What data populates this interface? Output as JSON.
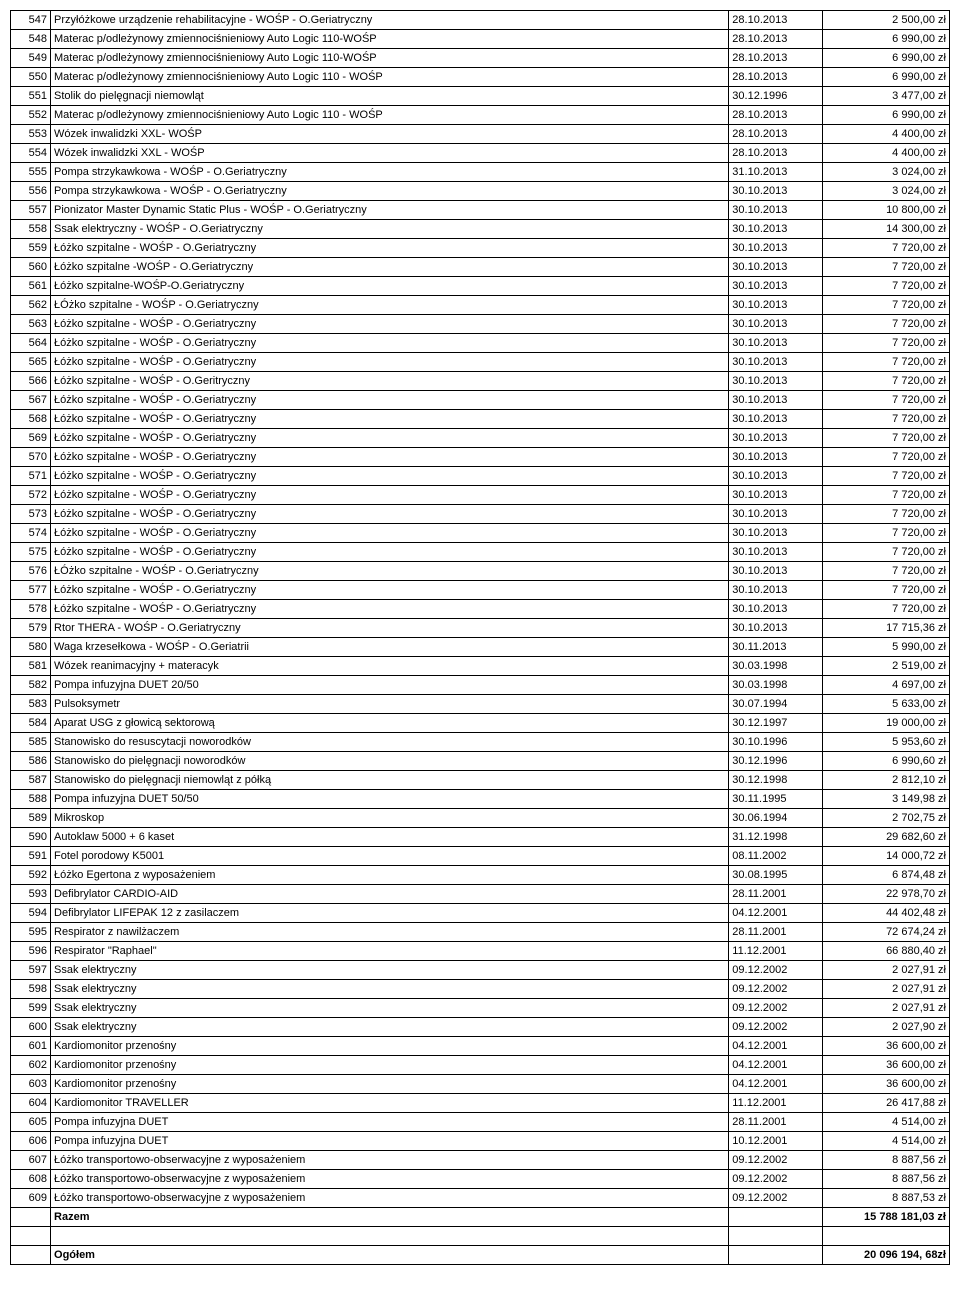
{
  "columns": {
    "widths": [
      30,
      620,
      80,
      110
    ],
    "align": [
      "right",
      "left",
      "left",
      "right"
    ]
  },
  "rows": [
    {
      "n": "547",
      "d": "Przyłóżkowe urządzenie rehabilitacyjne - WOŚP - O.Geriatryczny",
      "dt": "28.10.2013",
      "a": "2 500,00 zł"
    },
    {
      "n": "548",
      "d": "Materac p/odleżynowy zmiennociśnieniowy Auto Logic 110-WOŚP",
      "dt": "28.10.2013",
      "a": "6 990,00 zł"
    },
    {
      "n": "549",
      "d": "Materac p/odleżynowy zmiennociśnieniowy Auto Logic 110-WOŚP",
      "dt": "28.10.2013",
      "a": "6 990,00 zł"
    },
    {
      "n": "550",
      "d": "Materac p/odleżynowy zmiennociśnieniowy Auto Logic 110 - WOŚP",
      "dt": "28.10.2013",
      "a": "6 990,00 zł"
    },
    {
      "n": "551",
      "d": "Stolik do pielęgnacji niemowląt",
      "dt": "30.12.1996",
      "a": "3 477,00 zł"
    },
    {
      "n": "552",
      "d": "Materac p/odleżynowy zmiennociśnieniowy Auto Logic 110 - WOŚP",
      "dt": "28.10.2013",
      "a": "6 990,00 zł"
    },
    {
      "n": "553",
      "d": "Wózek inwalidzki XXL- WOŚP",
      "dt": "28.10.2013",
      "a": "4 400,00 zł"
    },
    {
      "n": "554",
      "d": "Wózek inwalidzki XXL - WOŚP",
      "dt": "28.10.2013",
      "a": "4 400,00 zł"
    },
    {
      "n": "555",
      "d": "Pompa strzykawkowa - WOŚP - O.Geriatryczny",
      "dt": "31.10.2013",
      "a": "3 024,00 zł"
    },
    {
      "n": "556",
      "d": "Pompa strzykawkowa - WOŚP - O.Geriatryczny",
      "dt": "30.10.2013",
      "a": "3 024,00 zł"
    },
    {
      "n": "557",
      "d": "Pionizator Master Dynamic Static Plus - WOŚP - O.Geriatryczny",
      "dt": "30.10.2013",
      "a": "10 800,00 zł"
    },
    {
      "n": "558",
      "d": "Ssak elektryczny - WOŚP - O.Geriatryczny",
      "dt": "30.10.2013",
      "a": "14 300,00 zł"
    },
    {
      "n": "559",
      "d": "Łóżko szpitalne - WOŚP - O.Geriatryczny",
      "dt": "30.10.2013",
      "a": "7 720,00 zł"
    },
    {
      "n": "560",
      "d": "Łóżko szpitalne -WOŚP - O.Geriatryczny",
      "dt": "30.10.2013",
      "a": "7 720,00 zł"
    },
    {
      "n": "561",
      "d": "Łóżko szpitalne-WOŚP-O.Geriatryczny",
      "dt": "30.10.2013",
      "a": "7 720,00 zł"
    },
    {
      "n": "562",
      "d": "ŁÓżko szpitalne - WOŚP - O.Geriatryczny",
      "dt": "30.10.2013",
      "a": "7 720,00 zł"
    },
    {
      "n": "563",
      "d": "Łóżko szpitalne - WOŚP - O.Geriatryczny",
      "dt": "30.10.2013",
      "a": "7 720,00 zł"
    },
    {
      "n": "564",
      "d": "Łóżko szpitalne - WOŚP - O.Geriatryczny",
      "dt": "30.10.2013",
      "a": "7 720,00 zł"
    },
    {
      "n": "565",
      "d": "Łóżko szpitalne - WOŚP - O.Geriatryczny",
      "dt": "30.10.2013",
      "a": "7 720,00 zł"
    },
    {
      "n": "566",
      "d": "Łóżko szpitalne - WOŚP - O.Geritryczny",
      "dt": "30.10.2013",
      "a": "7 720,00 zł"
    },
    {
      "n": "567",
      "d": "Łóżko szpitalne - WOŚP - O.Geriatryczny",
      "dt": "30.10.2013",
      "a": "7 720,00 zł"
    },
    {
      "n": "568",
      "d": "Łóżko szpitalne - WOŚP - O.Geriatryczny",
      "dt": "30.10.2013",
      "a": "7 720,00 zł"
    },
    {
      "n": "569",
      "d": "Łóżko szpitalne - WOŚP - O.Geriatryczny",
      "dt": "30.10.2013",
      "a": "7 720,00 zł"
    },
    {
      "n": "570",
      "d": "Łóżko szpitalne - WOŚP - O.Geriatryczny",
      "dt": "30.10.2013",
      "a": "7 720,00 zł"
    },
    {
      "n": "571",
      "d": "Łóżko szpitalne - WOŚP - O.Geriatryczny",
      "dt": "30.10.2013",
      "a": "7 720,00 zł"
    },
    {
      "n": "572",
      "d": "Łóżko szpitalne - WOŚP - O.Geriatryczny",
      "dt": "30.10.2013",
      "a": "7 720,00 zł"
    },
    {
      "n": "573",
      "d": "Łóżko szpitalne - WOŚP - O.Geriatryczny",
      "dt": "30.10.2013",
      "a": "7 720,00 zł"
    },
    {
      "n": "574",
      "d": "Łóżko szpitalne - WOŚP - O.Geriatryczny",
      "dt": "30.10.2013",
      "a": "7 720,00 zł"
    },
    {
      "n": "575",
      "d": "Łóżko szpitalne - WOŚP - O.Geriatryczny",
      "dt": "30.10.2013",
      "a": "7 720,00 zł"
    },
    {
      "n": "576",
      "d": "ŁÓżko szpitalne - WOŚP - O.Geriatryczny",
      "dt": "30.10.2013",
      "a": "7 720,00 zł"
    },
    {
      "n": "577",
      "d": "Łóżko szpitalne - WOŚP - O.Geriatryczny",
      "dt": "30.10.2013",
      "a": "7 720,00 zł"
    },
    {
      "n": "578",
      "d": "Łóżko szpitalne - WOŚP - O.Geriatryczny",
      "dt": "30.10.2013",
      "a": "7 720,00 zł"
    },
    {
      "n": "579",
      "d": "Rtor THERA - WOŚP - O.Geriatryczny",
      "dt": "30.10.2013",
      "a": "17 715,36 zł"
    },
    {
      "n": "580",
      "d": "Waga krzesełkowa - WOŚP - O.Geriatrii",
      "dt": "30.11.2013",
      "a": "5 990,00 zł"
    },
    {
      "n": "581",
      "d": "Wózek reanimacyjny + materacyk",
      "dt": "30.03.1998",
      "a": "2 519,00 zł"
    },
    {
      "n": "582",
      "d": "Pompa infuzyjna DUET 20/50",
      "dt": "30.03.1998",
      "a": "4 697,00 zł"
    },
    {
      "n": "583",
      "d": "Pulsoksymetr",
      "dt": "30.07.1994",
      "a": "5 633,00 zł"
    },
    {
      "n": "584",
      "d": "Aparat USG z głowicą sektorową",
      "dt": "30.12.1997",
      "a": "19 000,00 zł"
    },
    {
      "n": "585",
      "d": "Stanowisko do resuscytacji noworodków",
      "dt": "30.10.1996",
      "a": "5 953,60 zł"
    },
    {
      "n": "586",
      "d": "Stanowisko do pielęgnacji noworodków",
      "dt": "30.12.1996",
      "a": "6 990,60 zł"
    },
    {
      "n": "587",
      "d": "Stanowisko do pielęgnacji niemowląt z półką",
      "dt": "30.12.1998",
      "a": "2 812,10 zł"
    },
    {
      "n": "588",
      "d": "Pompa infuzyjna DUET 50/50",
      "dt": "30.11.1995",
      "a": "3 149,98 zł"
    },
    {
      "n": "589",
      "d": "Mikroskop",
      "dt": "30.06.1994",
      "a": "2 702,75 zł"
    },
    {
      "n": "590",
      "d": "Autoklaw 5000 + 6 kaset",
      "dt": "31.12.1998",
      "a": "29 682,60 zł"
    },
    {
      "n": "591",
      "d": "Fotel porodowy K5001",
      "dt": "08.11.2002",
      "a": "14 000,72 zł"
    },
    {
      "n": "592",
      "d": "Łóżko Egertona z wyposażeniem",
      "dt": "30.08.1995",
      "a": "6 874,48 zł"
    },
    {
      "n": "593",
      "d": "Defibrylator CARDIO-AID",
      "dt": "28.11.2001",
      "a": "22 978,70 zł"
    },
    {
      "n": "594",
      "d": "Defibrylator LIFEPAK 12 z zasilaczem",
      "dt": "04.12.2001",
      "a": "44 402,48 zł"
    },
    {
      "n": "595",
      "d": "Respirator z nawilżaczem",
      "dt": "28.11.2001",
      "a": "72 674,24 zł"
    },
    {
      "n": "596",
      "d": "Respirator \"Raphael\"",
      "dt": "11.12.2001",
      "a": "66 880,40 zł"
    },
    {
      "n": "597",
      "d": "Ssak elektryczny",
      "dt": "09.12.2002",
      "a": "2 027,91 zł"
    },
    {
      "n": "598",
      "d": "Ssak elektryczny",
      "dt": "09.12.2002",
      "a": "2 027,91 zł"
    },
    {
      "n": "599",
      "d": "Ssak elektryczny",
      "dt": "09.12.2002",
      "a": "2 027,91 zł"
    },
    {
      "n": "600",
      "d": "Ssak elektryczny",
      "dt": "09.12.2002",
      "a": "2 027,90 zł"
    },
    {
      "n": "601",
      "d": "Kardiomonitor przenośny",
      "dt": "04.12.2001",
      "a": "36 600,00 zł"
    },
    {
      "n": "602",
      "d": "Kardiomonitor przenośny",
      "dt": "04.12.2001",
      "a": "36 600,00 zł"
    },
    {
      "n": "603",
      "d": "Kardiomonitor przenośny",
      "dt": "04.12.2001",
      "a": "36 600,00 zł"
    },
    {
      "n": "604",
      "d": "Kardiomonitor TRAVELLER",
      "dt": "11.12.2001",
      "a": "26 417,88 zł"
    },
    {
      "n": "605",
      "d": "Pompa infuzyjna DUET",
      "dt": "28.11.2001",
      "a": "4 514,00 zł"
    },
    {
      "n": "606",
      "d": "Pompa infuzyjna DUET",
      "dt": "10.12.2001",
      "a": "4 514,00 zł"
    },
    {
      "n": "607",
      "d": "Łóżko transportowo-obserwacyjne z wyposażeniem",
      "dt": "09.12.2002",
      "a": "8 887,56 zł"
    },
    {
      "n": "608",
      "d": "Łóżko transportowo-obserwacyjne z wyposażeniem",
      "dt": "09.12.2002",
      "a": "8 887,56 zł"
    },
    {
      "n": "609",
      "d": "Łóżko transportowo-obserwacyjne z wyposażeniem",
      "dt": "09.12.2002",
      "a": "8 887,53 zł"
    }
  ],
  "summary": {
    "razem_label": "Razem",
    "razem_value": "15 788 181,03 zł",
    "ogolem_label": "Ogółem",
    "ogolem_value": "20 096 194, 68zł"
  }
}
